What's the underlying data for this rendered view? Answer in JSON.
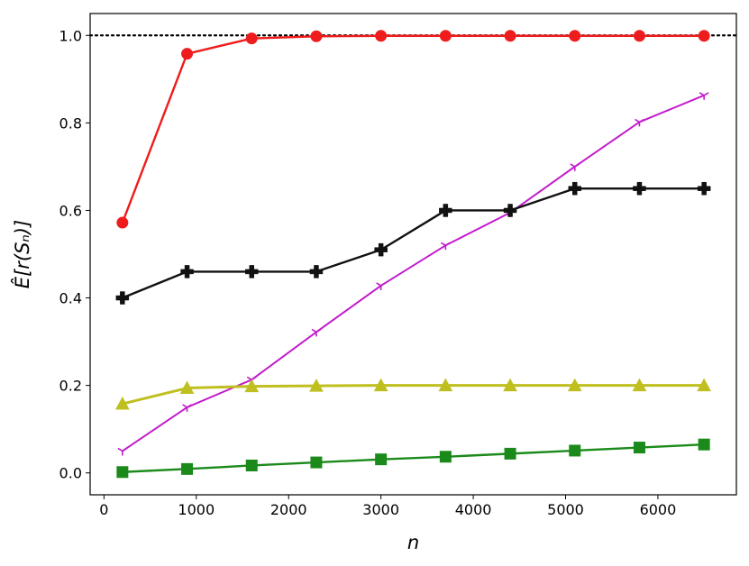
{
  "chart_data": {
    "type": "line",
    "title": "",
    "xlabel": "n",
    "ylabel": "Ê[r(Sₙ)]",
    "xlim": [
      -150,
      6850
    ],
    "ylim": [
      -0.05,
      1.05
    ],
    "xticks": [
      0,
      1000,
      2000,
      3000,
      4000,
      5000,
      6000
    ],
    "yticks": [
      0.0,
      0.2,
      0.4,
      0.6,
      0.8,
      1.0
    ],
    "xtick_labels": [
      "0",
      "1000",
      "2000",
      "3000",
      "4000",
      "5000",
      "6000"
    ],
    "ytick_labels": [
      "0.0",
      "0.2",
      "0.4",
      "0.6",
      "0.8",
      "1.0"
    ],
    "grid": false,
    "x": [
      200,
      900,
      1600,
      2300,
      3000,
      3700,
      4400,
      5100,
      5800,
      6500
    ],
    "series": [
      {
        "color": "#ee1c1c",
        "marker": "circle",
        "values": [
          0.572,
          0.958,
          0.993,
          0.998,
          0.999,
          0.999,
          0.999,
          0.999,
          0.999,
          0.999
        ]
      },
      {
        "color": "#c21ccc",
        "marker": "tri_down",
        "values": [
          0.05,
          0.15,
          0.213,
          0.322,
          0.428,
          0.52,
          0.595,
          0.7,
          0.802,
          0.863
        ]
      },
      {
        "color": "#111111",
        "marker": "plus_filled",
        "values": [
          0.4,
          0.46,
          0.46,
          0.46,
          0.51,
          0.6,
          0.6,
          0.65,
          0.65,
          0.65
        ]
      },
      {
        "color": "#bfbf1f",
        "marker": "triangle",
        "values": [
          0.158,
          0.194,
          0.198,
          0.199,
          0.2,
          0.2,
          0.2,
          0.2,
          0.2,
          0.2
        ]
      },
      {
        "color": "#1b8a1b",
        "marker": "square",
        "values": [
          0.002,
          0.009,
          0.017,
          0.024,
          0.031,
          0.037,
          0.044,
          0.051,
          0.058,
          0.065
        ]
      }
    ],
    "reference_line": {
      "y": 1.0,
      "style": "dotted",
      "color": "#000000"
    }
  }
}
